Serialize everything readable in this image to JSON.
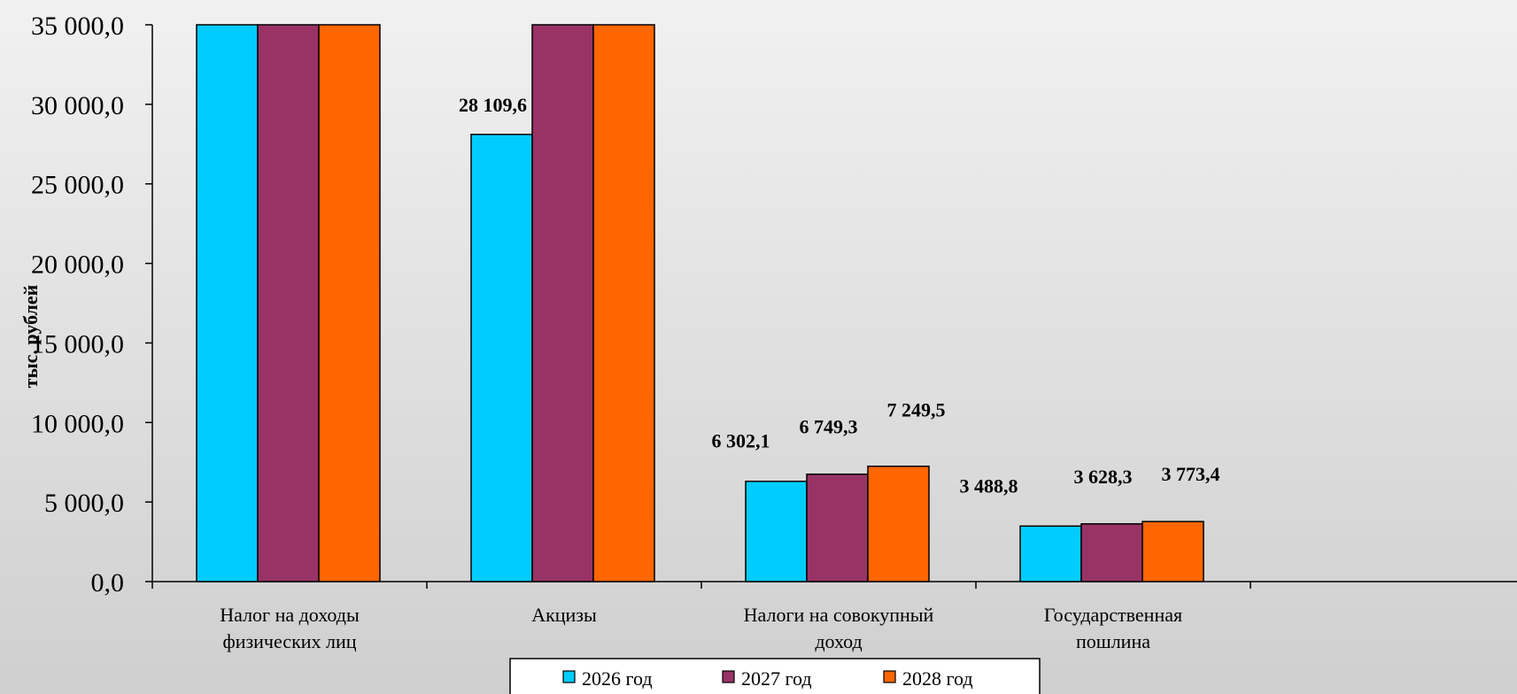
{
  "chart_data": {
    "type": "bar",
    "categories": [
      [
        "Налог на доходы",
        "физических лиц"
      ],
      [
        "Акцизы"
      ],
      [
        "Налоги на совокупный",
        "доход"
      ],
      [
        "Государственная",
        "пошлина"
      ]
    ],
    "series": [
      {
        "name": "2026 год",
        "color": "#00ccff",
        "values": [
          35000,
          28109.6,
          6302.1,
          3488.8
        ],
        "labels": [
          "",
          "28 109,6",
          "6 302,1",
          "3 488,8"
        ]
      },
      {
        "name": "2027 год",
        "color": "#993366",
        "values": [
          35000,
          35000,
          6749.3,
          3628.3
        ],
        "labels": [
          "",
          "",
          "6 749,3",
          "3 628,3"
        ]
      },
      {
        "name": "2028 год",
        "color": "#ff6600",
        "values": [
          35000,
          35000,
          7249.5,
          3773.4
        ],
        "labels": [
          "",
          "",
          "7 249,5",
          "3 773,4"
        ]
      }
    ],
    "yticks": [
      0,
      5000,
      10000,
      15000,
      20000,
      25000,
      30000,
      35000
    ],
    "ytick_labels": [
      "0,0",
      "5 000,0",
      "10 000,0",
      "15 000,0",
      "20 000,0",
      "25 000,0",
      "30 000,0",
      "35 000,0"
    ],
    "ylim": [
      0,
      35000
    ],
    "ylabel": "тыс. рублей",
    "xlabel": "",
    "title": "",
    "grid": false,
    "legend_position": "bottom"
  }
}
